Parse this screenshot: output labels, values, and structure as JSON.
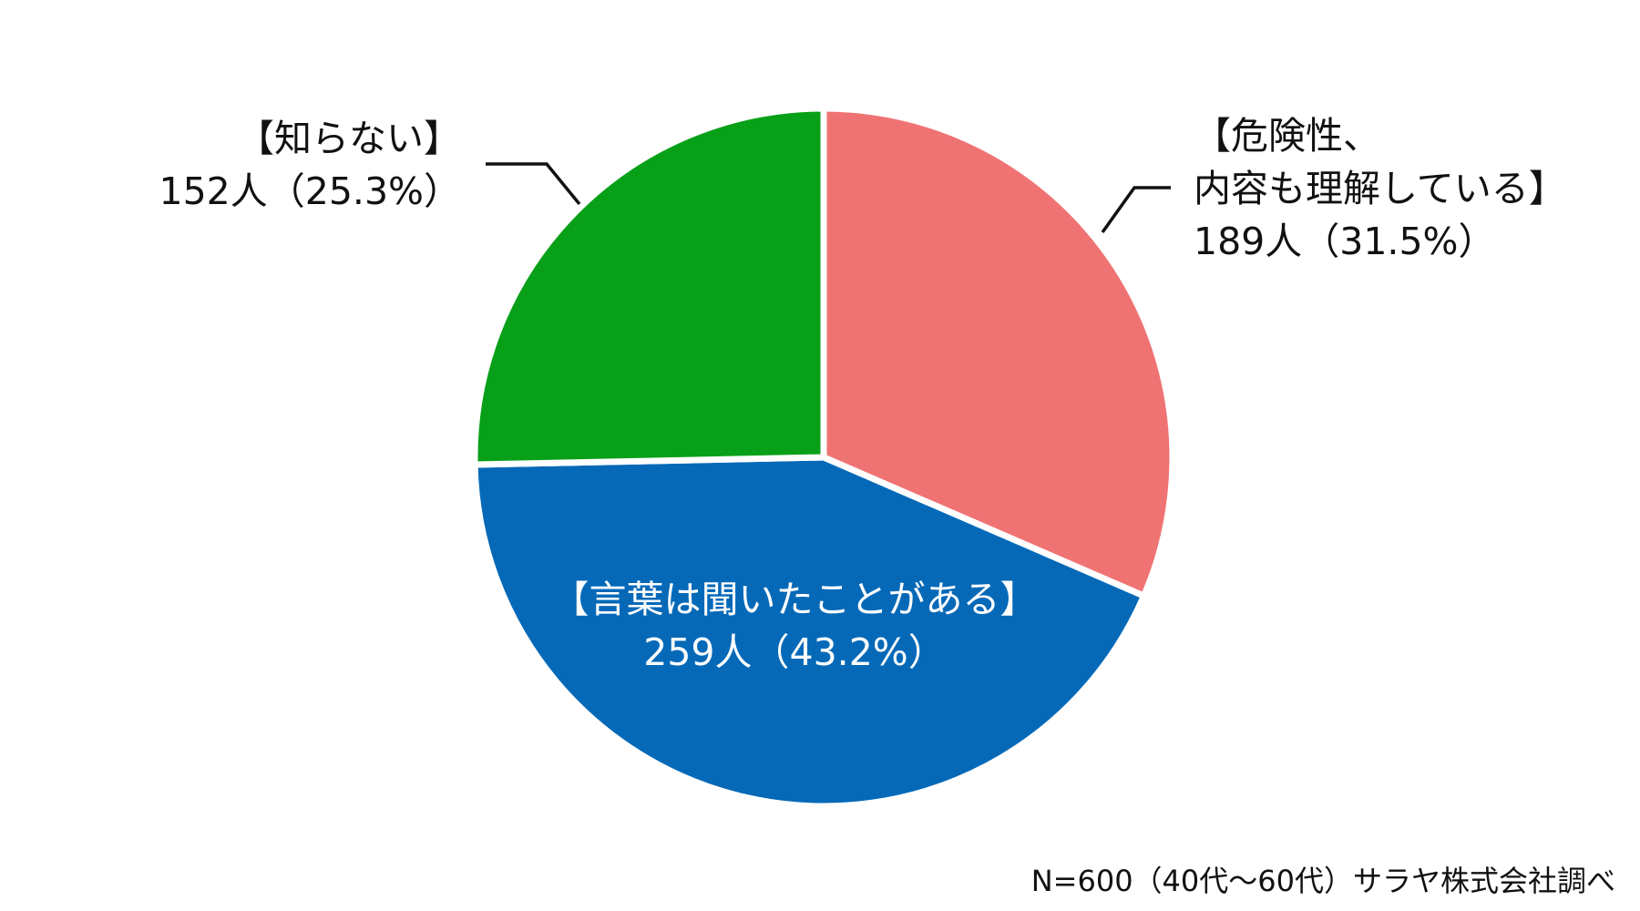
{
  "chart_data": {
    "type": "pie",
    "total": 600,
    "slices": [
      {
        "label": "【危険性、内容も理解している】",
        "label_lines": [
          "【危険性、",
          "内容も理解している】"
        ],
        "count": 189,
        "count_text": "189人（31.5%）",
        "percent": 31.5,
        "color": "#F07373"
      },
      {
        "label": "【言葉は聞いたことがある】",
        "label_lines": [
          "【言葉は聞いたことがある】"
        ],
        "count": 259,
        "count_text": "259人（43.2%）",
        "percent": 43.2,
        "color": "#0569B8"
      },
      {
        "label": "【知らない】",
        "label_lines": [
          "【知らない】"
        ],
        "count": 152,
        "count_text": "152人（25.3%）",
        "percent": 25.3,
        "color": "#08A018"
      }
    ],
    "slice_border_color": "#ffffff",
    "label_color_outside": "#111111",
    "label_color_inside": "#ffffff",
    "leader_line_color": "#111111",
    "note": "N=600（40代～60代）サラヤ株式会社調べ"
  }
}
